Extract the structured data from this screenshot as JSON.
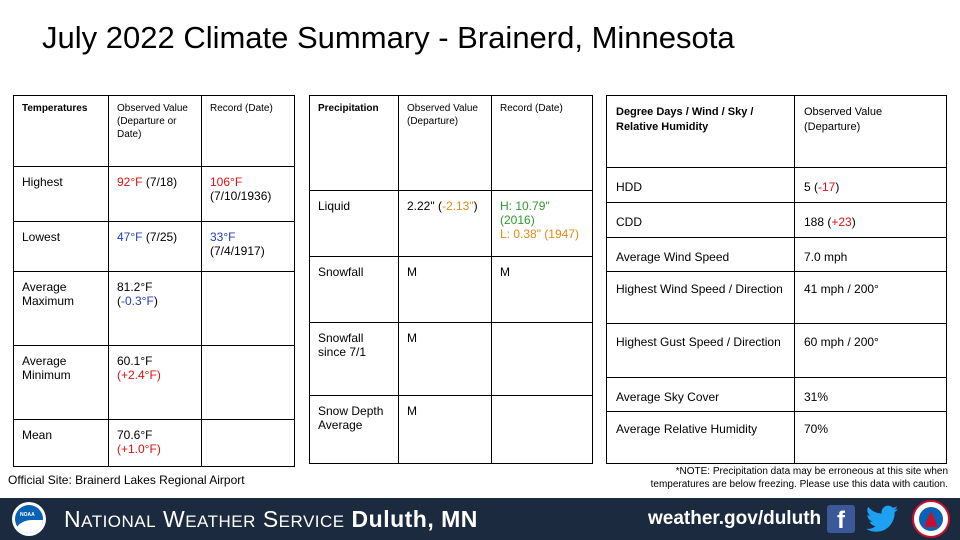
{
  "title": "July 2022 Climate Summary - Brainerd, Minnesota",
  "temperatures": {
    "headers": [
      "Temperatures",
      "Observed Value (Departure or Date)",
      "Record (Date)"
    ],
    "rows": [
      {
        "label": "Highest",
        "value": "92°F",
        "value_color": "red",
        "extra": " (7/18)",
        "record": "106°F",
        "record_extra": "(7/10/1936)",
        "record_color": "red"
      },
      {
        "label": "Lowest",
        "value": "47°F",
        "value_color": "blue",
        "extra": " (7/25)",
        "record": "33°F",
        "record_extra": "(7/4/1917)",
        "record_color": "blue"
      },
      {
        "label": "Average Maximum",
        "value": "81.2°F (",
        "dep": "-0.3°F",
        "dep_color": "blue",
        "close": ")"
      },
      {
        "label": "Average Minimum",
        "value": "60.1°F",
        "dep_line": "(+2.4°F)",
        "dep_color": "red"
      },
      {
        "label": "Mean",
        "value": "70.6°F",
        "dep_line": "(+1.0°F)",
        "dep_color": "red"
      }
    ]
  },
  "precipitation": {
    "headers": [
      "Precipitation",
      "Observed Value (Departure)",
      "Record (Date)"
    ],
    "rows": [
      {
        "label": "Liquid",
        "value": "2.22\" (",
        "dep": "-2.13\"",
        "close": ")",
        "rec_high": "H: 10.79\" (2016)",
        "rec_low": "L: 0.38\" (1947)"
      },
      {
        "label": "Snowfall",
        "value": "M",
        "record": "M"
      },
      {
        "label": "Snowfall since 7/1",
        "value": "M",
        "record": ""
      },
      {
        "label": "Snow Depth Average",
        "value": "M",
        "record": ""
      }
    ]
  },
  "degree_days": {
    "headers": [
      "Degree Days / Wind / Sky / Relative Humidity",
      "Observed Value (Departure)"
    ],
    "rows": [
      {
        "label": "HDD",
        "value": "5 (",
        "dep": "-17",
        "dep_color": "red",
        "close": ")"
      },
      {
        "label": "CDD",
        "value": "188 (",
        "dep": "+23",
        "dep_color": "red",
        "close": ")"
      },
      {
        "label": "Average Wind Speed",
        "value": "7.0 mph"
      },
      {
        "label": "Highest Wind Speed / Direction",
        "value": "41 mph / 200°"
      },
      {
        "label": "Highest Gust Speed / Direction",
        "value": "60 mph / 200°"
      },
      {
        "label": "Average Sky Cover",
        "value": "31%"
      },
      {
        "label": "Average Relative Humidity",
        "value": "70%"
      }
    ]
  },
  "official_site": "Official Site: Brainerd Lakes Regional Airport",
  "note_line1": "*NOTE:  Precipitation data may be erroneous at this site when",
  "note_line2": "temperatures are below freezing. Please use this data with caution.",
  "footer": {
    "noaa_text": "NOAA",
    "nws_n": "N",
    "nws_ational": "ATIONAL",
    "nws_w": "W",
    "nws_eather": "EATHER",
    "nws_s": "S",
    "nws_ervice": "ERVICE",
    "nws_office": "Duluth, MN",
    "url": "weather.gov/duluth",
    "fb_glyph": "f",
    "icons": [
      "noaa-logo",
      "facebook-icon",
      "twitter-icon",
      "nws-logo"
    ]
  },
  "colors": {
    "red": "#e01010",
    "blue": "#1f3fbf",
    "green": "#2e9a32",
    "orange": "#e08a18",
    "footer_bg": "#1b2a3e"
  }
}
